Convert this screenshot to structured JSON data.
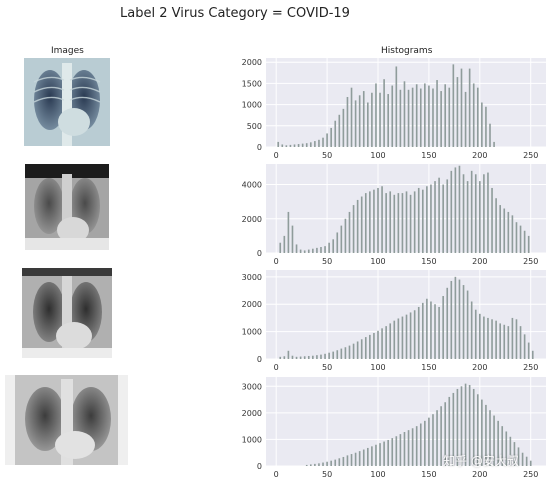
{
  "title": "Label 2 Virus Category = COVID-19",
  "images_title": "Images",
  "histograms_title": "Histograms",
  "watermark": "知乎 @安大叔",
  "colors": {
    "panel_bg": "#eaeaf2",
    "grid": "#ffffff",
    "bar": "#8f9c9b",
    "tick_text": "#333333"
  },
  "xray_images": [
    {
      "name": "xray-image-1",
      "tint": "cool-blue"
    },
    {
      "name": "xray-image-2",
      "tint": "grayscale"
    },
    {
      "name": "xray-image-3",
      "tint": "grayscale"
    },
    {
      "name": "xray-image-4",
      "tint": "grayscale"
    }
  ],
  "chart_data": [
    {
      "type": "bar",
      "x_ticks": [
        0,
        50,
        100,
        150,
        200,
        250
      ],
      "y_ticks": [
        0,
        500,
        1000,
        1500,
        2000
      ],
      "xlim": [
        -10,
        265
      ],
      "ylim": [
        0,
        2100
      ],
      "grid": true,
      "x": [
        2,
        6,
        10,
        14,
        18,
        22,
        26,
        30,
        34,
        38,
        42,
        46,
        50,
        54,
        58,
        62,
        66,
        70,
        74,
        78,
        82,
        86,
        90,
        94,
        98,
        102,
        106,
        110,
        114,
        118,
        122,
        126,
        130,
        134,
        138,
        142,
        146,
        150,
        154,
        158,
        162,
        166,
        170,
        174,
        178,
        182,
        186,
        190,
        194,
        198,
        202,
        206,
        210,
        214
      ],
      "values": [
        120,
        60,
        40,
        50,
        60,
        70,
        80,
        90,
        110,
        140,
        170,
        220,
        320,
        450,
        620,
        760,
        900,
        1180,
        1400,
        1100,
        1220,
        1320,
        1050,
        1280,
        1500,
        1280,
        1600,
        1250,
        1450,
        1900,
        1350,
        1550,
        1350,
        1400,
        1480,
        1380,
        1500,
        1450,
        1380,
        1580,
        1320,
        1480,
        1400,
        1950,
        1650,
        1850,
        1300,
        1850,
        1500,
        1400,
        1050,
        950,
        550,
        120
      ]
    },
    {
      "type": "bar",
      "x_ticks": [
        0,
        50,
        100,
        150,
        200,
        250
      ],
      "y_ticks": [
        0,
        2000,
        4000
      ],
      "xlim": [
        -10,
        265
      ],
      "ylim": [
        0,
        5200
      ],
      "grid": true,
      "x": [
        4,
        8,
        12,
        16,
        20,
        24,
        28,
        32,
        36,
        40,
        44,
        48,
        52,
        56,
        60,
        64,
        68,
        72,
        76,
        80,
        84,
        88,
        92,
        96,
        100,
        104,
        108,
        112,
        116,
        120,
        124,
        128,
        132,
        136,
        140,
        144,
        148,
        152,
        156,
        160,
        164,
        168,
        172,
        176,
        180,
        184,
        188,
        192,
        196,
        200,
        204,
        208,
        212,
        216,
        220,
        224,
        228,
        232,
        236,
        240,
        244,
        248
      ],
      "values": [
        600,
        1000,
        2400,
        1600,
        500,
        200,
        150,
        200,
        250,
        300,
        350,
        400,
        600,
        800,
        1200,
        1600,
        2000,
        2400,
        2800,
        3100,
        3300,
        3500,
        3600,
        3700,
        3800,
        3900,
        3500,
        3600,
        3400,
        3500,
        3500,
        3600,
        3400,
        3600,
        3800,
        3700,
        3900,
        4000,
        4200,
        4400,
        4000,
        4300,
        4800,
        5000,
        5100,
        4600,
        4200,
        4800,
        4600,
        4200,
        4600,
        4700,
        3800,
        3200,
        2800,
        2600,
        2400,
        2200,
        1800,
        1600,
        1300,
        1000
      ]
    },
    {
      "type": "bar",
      "x_ticks": [
        0,
        50,
        100,
        150,
        200,
        250
      ],
      "y_ticks": [
        0,
        1000,
        2000,
        3000
      ],
      "xlim": [
        -10,
        265
      ],
      "ylim": [
        0,
        3250
      ],
      "grid": true,
      "x": [
        4,
        8,
        12,
        16,
        20,
        24,
        28,
        32,
        36,
        40,
        44,
        48,
        52,
        56,
        60,
        64,
        68,
        72,
        76,
        80,
        84,
        88,
        92,
        96,
        100,
        104,
        108,
        112,
        116,
        120,
        124,
        128,
        132,
        136,
        140,
        144,
        148,
        152,
        156,
        160,
        164,
        168,
        172,
        176,
        180,
        184,
        188,
        192,
        196,
        200,
        204,
        208,
        212,
        216,
        220,
        224,
        228,
        232,
        236,
        240,
        244,
        248,
        252
      ],
      "values": [
        80,
        100,
        300,
        120,
        80,
        90,
        100,
        110,
        120,
        140,
        160,
        190,
        230,
        270,
        320,
        380,
        430,
        490,
        560,
        640,
        720,
        800,
        880,
        950,
        1030,
        1120,
        1200,
        1300,
        1400,
        1480,
        1550,
        1620,
        1700,
        1780,
        1900,
        2050,
        2200,
        2100,
        2000,
        1900,
        2300,
        2600,
        2850,
        3000,
        2900,
        2700,
        2500,
        2100,
        1800,
        1650,
        1550,
        1500,
        1450,
        1400,
        1300,
        1250,
        1200,
        1500,
        1450,
        1200,
        900,
        600,
        300
      ]
    },
    {
      "type": "bar",
      "x_ticks": [
        0,
        50,
        100,
        150,
        200,
        250
      ],
      "y_ticks": [
        0,
        1000,
        2000,
        3000
      ],
      "xlim": [
        -10,
        265
      ],
      "ylim": [
        0,
        3350
      ],
      "grid": true,
      "x": [
        30,
        34,
        38,
        42,
        46,
        50,
        54,
        58,
        62,
        66,
        70,
        74,
        78,
        82,
        86,
        90,
        94,
        98,
        102,
        106,
        110,
        114,
        118,
        122,
        126,
        130,
        134,
        138,
        142,
        146,
        150,
        154,
        158,
        162,
        166,
        170,
        174,
        178,
        182,
        186,
        190,
        194,
        198,
        202,
        206,
        210,
        214,
        218,
        222,
        226,
        230,
        234,
        238,
        242,
        246,
        250
      ],
      "values": [
        40,
        60,
        80,
        100,
        130,
        160,
        200,
        240,
        290,
        340,
        400,
        450,
        500,
        560,
        620,
        680,
        740,
        800,
        860,
        920,
        980,
        1050,
        1120,
        1200,
        1280,
        1350,
        1420,
        1500,
        1600,
        1700,
        1820,
        1950,
        2100,
        2250,
        2400,
        2600,
        2750,
        2900,
        3000,
        3100,
        3050,
        2900,
        2700,
        2500,
        2300,
        2100,
        1900,
        1700,
        1500,
        1300,
        1100,
        900,
        700,
        500,
        350,
        200
      ]
    }
  ]
}
